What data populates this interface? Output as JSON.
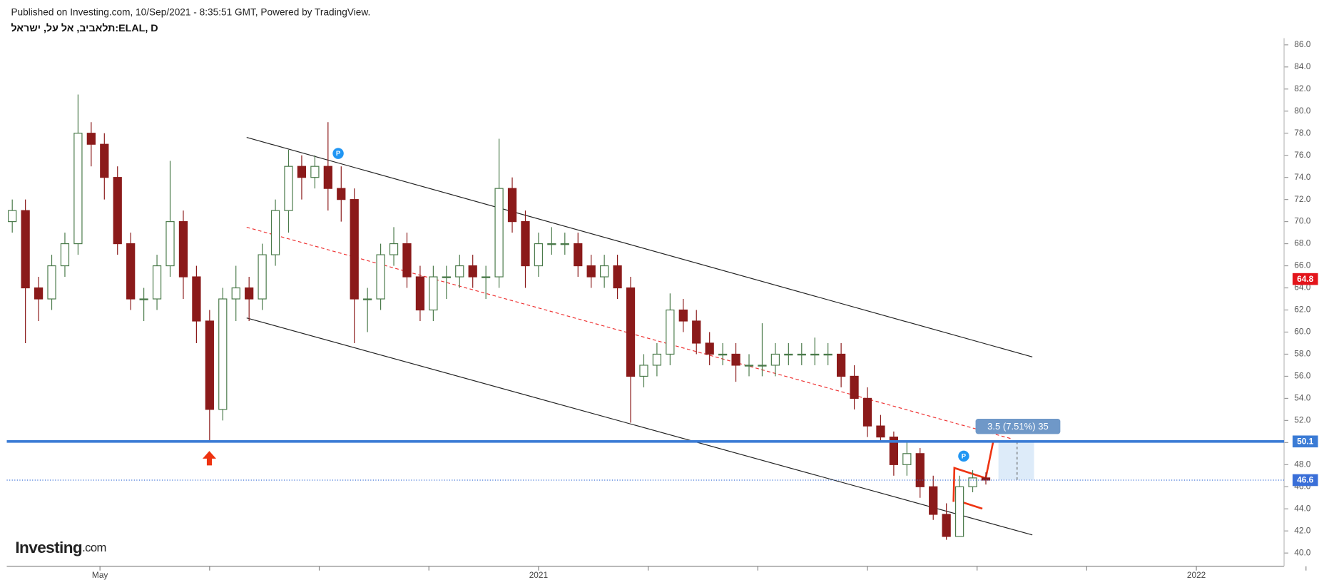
{
  "header": {
    "published": "Published on Investing.com, 10/Sep/2021 - 8:35:51 GMT, Powered by TradingView.",
    "symbol": "תלאביב, אל על, ישראל:ELAL, D"
  },
  "logo": {
    "main": "Investing",
    "suffix": ".com"
  },
  "chart_data": {
    "type": "candlestick",
    "x": [
      -1.6,
      -1.36,
      -1.12,
      -0.88,
      -0.64,
      -0.4,
      -0.16,
      0.08,
      0.32,
      0.56,
      0.8,
      1.04,
      1.28,
      1.52,
      1.76,
      2,
      2.24,
      2.48,
      2.72,
      2.96,
      3.2,
      3.44,
      3.68,
      3.92,
      4.16,
      4.4,
      4.64,
      4.88,
      5.12,
      5.36,
      5.6,
      5.84,
      6.08,
      6.32,
      6.56,
      6.8,
      7.04,
      7.28,
      7.52,
      7.76,
      8,
      8.24,
      8.48,
      8.72,
      8.96,
      9.2,
      9.44,
      9.68,
      9.92,
      10.16,
      10.4,
      10.64,
      10.88,
      11.12,
      11.36,
      11.6,
      11.84,
      12.08,
      12.32,
      12.56,
      12.8,
      13.04,
      13.28,
      13.52,
      13.76,
      14,
      14.24,
      14.48,
      14.72,
      14.96,
      15.2,
      15.44,
      15.68,
      15.92,
      16.16
    ],
    "open": [
      70,
      71,
      64,
      63,
      66,
      68,
      78,
      77,
      74,
      68,
      63,
      63,
      66,
      70,
      65,
      61,
      53,
      63,
      64,
      63,
      67,
      71,
      75,
      74,
      75,
      73,
      72,
      63,
      63,
      67,
      68,
      65,
      62,
      65,
      65,
      66,
      65,
      65,
      73,
      70,
      66,
      68,
      68,
      68,
      66,
      65,
      66,
      64,
      56,
      57,
      58,
      62,
      61,
      59,
      58,
      58,
      57,
      57,
      57,
      58,
      58,
      58,
      58,
      58,
      56,
      54,
      51.5,
      50.5,
      48,
      49,
      46,
      43.5,
      41.5,
      46,
      46.8
    ],
    "high": [
      72,
      72,
      65,
      67,
      69,
      81.5,
      79,
      78,
      75,
      69,
      64,
      67,
      75.5,
      71,
      66,
      62,
      64,
      66,
      65,
      68,
      72,
      76.5,
      76,
      76,
      79,
      75,
      73,
      64,
      68,
      69.5,
      69,
      66,
      66,
      66,
      67,
      67,
      66,
      77.5,
      74,
      71,
      69,
      69.5,
      69,
      69,
      67,
      67,
      67,
      65,
      58,
      59,
      63.5,
      63,
      62,
      60,
      59,
      59,
      58,
      60.8,
      59,
      59,
      59,
      59.5,
      59,
      59,
      57,
      55,
      52.5,
      51,
      50,
      49.5,
      47,
      44.5,
      47,
      47.5,
      47.3
    ],
    "low": [
      69,
      59,
      61,
      62,
      65,
      67,
      75,
      72,
      67,
      62,
      61,
      62,
      65,
      63,
      59,
      50.1,
      52,
      61,
      61,
      62,
      66,
      69,
      72,
      73,
      71,
      70,
      59,
      60,
      62,
      66,
      64,
      61,
      61,
      63,
      64,
      64,
      63,
      64,
      69,
      64,
      65,
      67,
      67,
      65,
      64,
      64,
      63,
      51.8,
      55,
      56,
      57,
      60,
      58,
      57,
      57,
      55.5,
      56,
      56,
      56,
      57,
      57,
      57,
      57,
      55,
      53,
      50.5,
      50,
      47,
      47,
      45,
      43,
      41.2,
      41.5,
      45.5,
      46.2
    ],
    "close": [
      71,
      64,
      63,
      66,
      68,
      78,
      77,
      74,
      68,
      63,
      63,
      66,
      70,
      65,
      61,
      53,
      63,
      64,
      63,
      67,
      71,
      75,
      74,
      75,
      73,
      72,
      63,
      63,
      67,
      68,
      65,
      62,
      65,
      65,
      66,
      65,
      65,
      73,
      70,
      66,
      68,
      68,
      68,
      66,
      65,
      66,
      64,
      56,
      57,
      58,
      62,
      61,
      59,
      58,
      58,
      57,
      57,
      57,
      58,
      58,
      58,
      58,
      58,
      56,
      54,
      51.5,
      50.5,
      48,
      49,
      46,
      43.5,
      41.5,
      46,
      46.8,
      46.6
    ],
    "up_color": "#4a7a4a",
    "down_color": "#8b1a1a",
    "xlim": [
      -1.7,
      21.6
    ],
    "xticks": [
      0,
      2,
      4,
      6,
      8,
      10,
      12,
      14,
      16,
      18,
      20,
      22
    ],
    "xtick_labels": [
      {
        "value": 0,
        "label": "May"
      },
      {
        "value": 8,
        "label": "2021"
      },
      {
        "value": 20,
        "label": "2022"
      }
    ],
    "ylim": [
      38.8,
      86.6
    ],
    "yticks": [
      {
        "value": 40,
        "label": "40.0"
      },
      {
        "value": 42,
        "label": "42.0"
      },
      {
        "value": 44,
        "label": "44.0"
      },
      {
        "value": 46,
        "label": "46.0"
      },
      {
        "value": 48,
        "label": "48.0"
      },
      {
        "value": 50,
        "label": "50.0"
      },
      {
        "value": 52,
        "label": "52.0"
      },
      {
        "value": 54,
        "label": "54.0"
      },
      {
        "value": 56,
        "label": "56.0"
      },
      {
        "value": 58,
        "label": "58.0"
      },
      {
        "value": 60,
        "label": "60.0"
      },
      {
        "value": 62,
        "label": "62.0"
      },
      {
        "value": 64,
        "label": "64.0"
      },
      {
        "value": 66,
        "label": "66.0"
      },
      {
        "value": 68,
        "label": "68.0"
      },
      {
        "value": 70,
        "label": "70.0"
      },
      {
        "value": 72,
        "label": "72.0"
      },
      {
        "value": 74,
        "label": "74.0"
      },
      {
        "value": 76,
        "label": "76.0"
      },
      {
        "value": 78,
        "label": "78.0"
      },
      {
        "value": 80,
        "label": "80.0"
      },
      {
        "value": 82,
        "label": "82.0"
      },
      {
        "value": 84,
        "label": "84.0"
      },
      {
        "value": 86,
        "label": "86.0"
      }
    ],
    "price_labels": [
      {
        "value": 64.8,
        "color": "#e3141b",
        "line": "none"
      },
      {
        "value": 50.1,
        "color": "#3a7bd5",
        "line": "solid"
      },
      {
        "value": 46.6,
        "color": "#3a6fd8",
        "line": "dotted"
      }
    ],
    "measure_label": "3.5 (7.51%) 35",
    "markers": [
      "P",
      "P"
    ]
  }
}
